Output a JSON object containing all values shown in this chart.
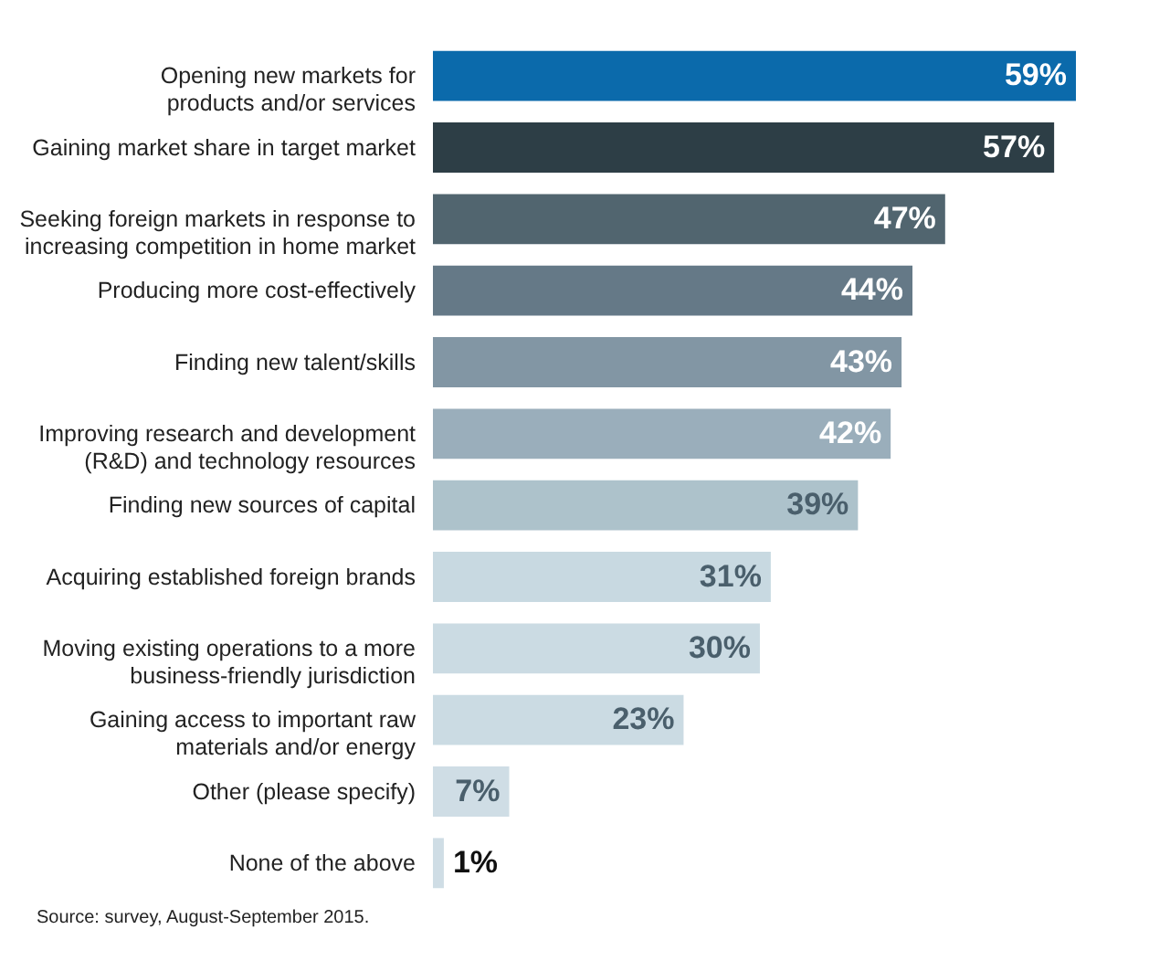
{
  "chart_data": {
    "type": "bar",
    "orientation": "horizontal",
    "categories": [
      "Opening new markets for\nproducts and/or services",
      "Gaining market share in target market",
      "Seeking foreign markets in response to\nincreasing competition in home market",
      "Producing more cost-effectively",
      "Finding new talent/skills",
      "Improving research and development\n(R&D) and technology resources",
      "Finding new sources of capital",
      "Acquiring established foreign brands",
      "Moving existing operations to a more\nbusiness-friendly jurisdiction",
      "Gaining access to important raw\nmaterials and/or energy",
      "Other (please specify)",
      "None of the above"
    ],
    "values": [
      59,
      57,
      47,
      44,
      43,
      42,
      39,
      31,
      30,
      23,
      7,
      1
    ],
    "value_labels": [
      "59%",
      "57%",
      "47%",
      "44%",
      "43%",
      "42%",
      "39%",
      "31%",
      "30%",
      "23%",
      "7%",
      "1%"
    ],
    "colors": [
      "#0b6aab",
      "#2d3e46",
      "#51656f",
      "#657987",
      "#8296a4",
      "#9aaebb",
      "#adc2cb",
      "#c8d9e1",
      "#cbdbe3",
      "#cbdbe3",
      "#cfdde5",
      "#cfdde5"
    ],
    "annotations": [
      "Source: survey, August-September 2015."
    ]
  }
}
